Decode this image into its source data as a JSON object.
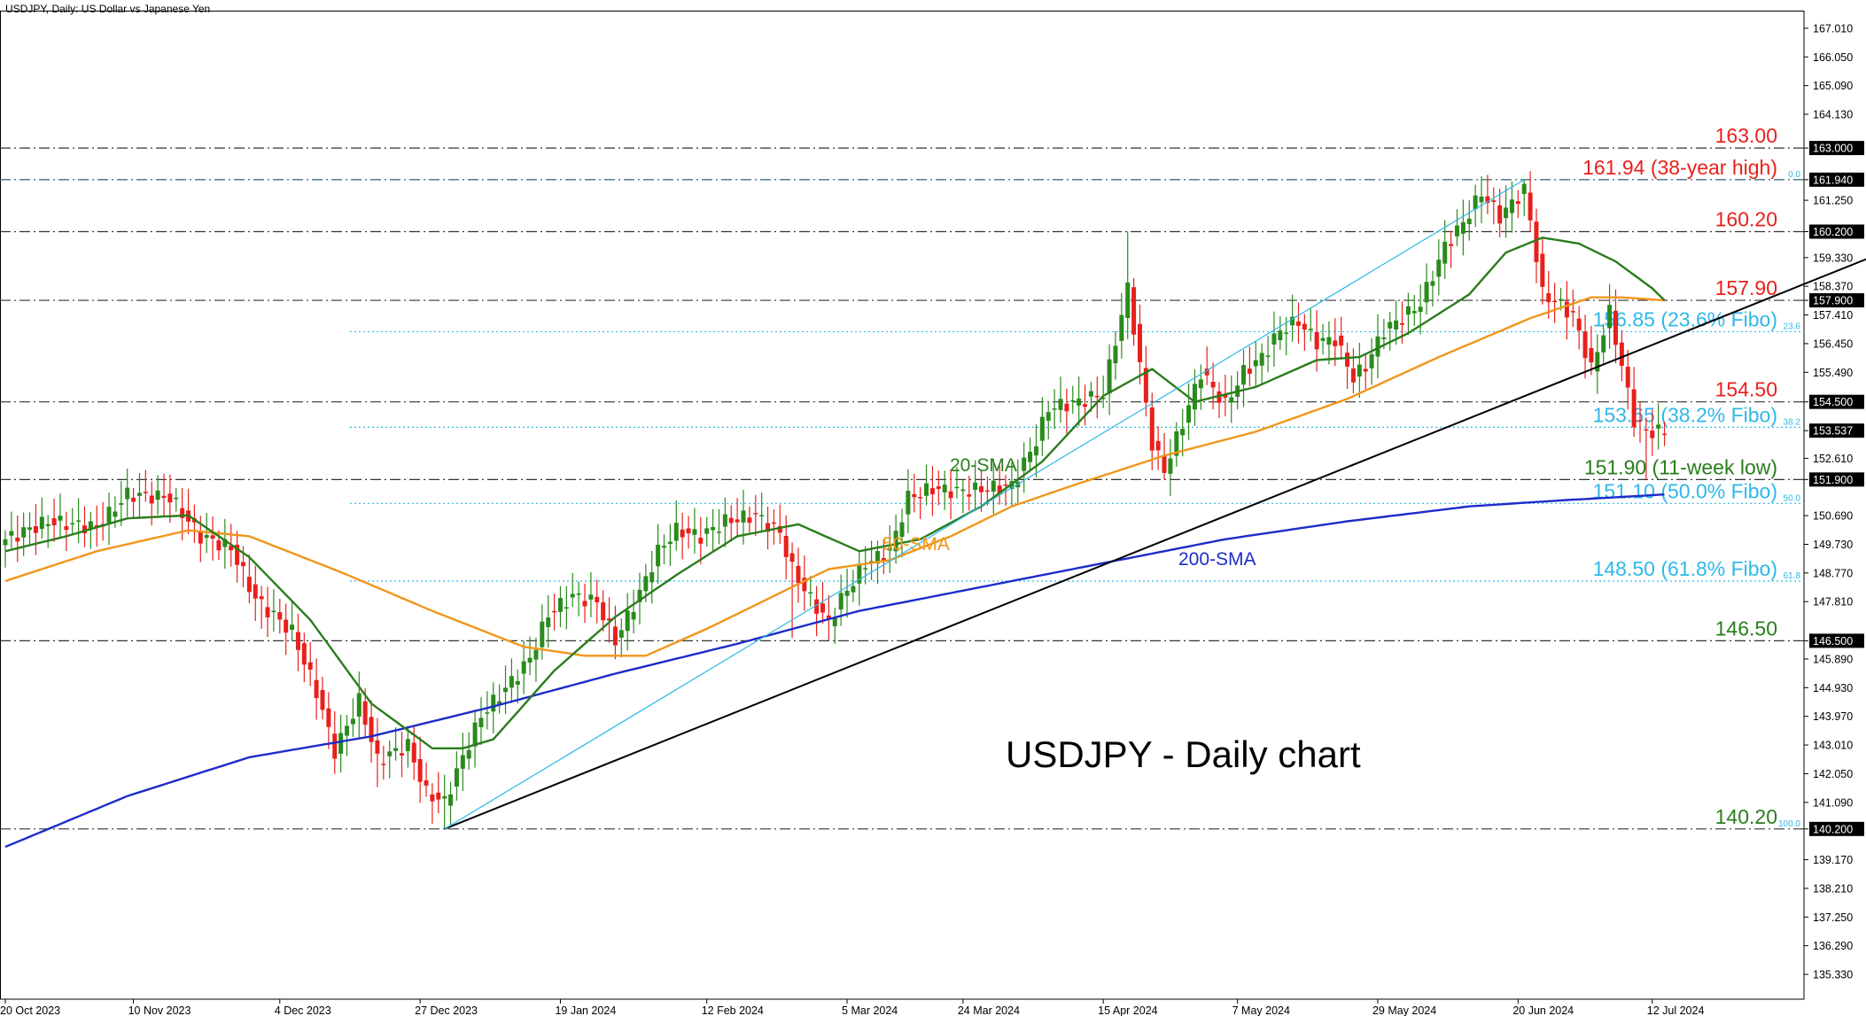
{
  "header": {
    "title": "USDJPY, Daily:  US Dollar vs Japanese Yen"
  },
  "chart_data": {
    "type": "candlestick",
    "symbol": "USDJPY",
    "timeframe": "Daily",
    "big_title": "USDJPY - Daily chart",
    "ylim": [
      134.5,
      167.6
    ],
    "y_ticks": [
      "167.010",
      "166.050",
      "165.090",
      "164.130",
      "163.000",
      "161.940",
      "161.250",
      "160.200",
      "159.330",
      "158.370",
      "157.900",
      "157.410",
      "156.450",
      "155.490",
      "154.500",
      "153.537",
      "152.610",
      "151.900",
      "150.690",
      "149.730",
      "148.770",
      "147.810",
      "146.500",
      "145.890",
      "144.930",
      "143.970",
      "143.010",
      "142.050",
      "141.090",
      "140.200",
      "139.170",
      "138.210",
      "137.250",
      "136.290",
      "135.330"
    ],
    "highlight_ticks": [
      "163.000",
      "161.940",
      "160.200",
      "157.900",
      "154.500",
      "153.537",
      "151.900",
      "146.500",
      "140.200"
    ],
    "x_ticks": [
      "20 Oct 2023",
      "10 Nov 2023",
      "4 Dec 2023",
      "27 Dec 2023",
      "19 Jan 2024",
      "12 Feb 2024",
      "5 Mar 2024",
      "24 Mar 2024",
      "15 Apr 2024",
      "7 May 2024",
      "29 May 2024",
      "20 Jun 2024",
      "12 Jul 2024"
    ],
    "levels": [
      {
        "label": "163.00",
        "value": 163.0,
        "kind": "resistance",
        "color": "#e8201c"
      },
      {
        "label": "161.94 (38-year high)",
        "value": 161.94,
        "kind": "fibo",
        "fibo_tag": "0.0",
        "color": "#e8201c"
      },
      {
        "label": "160.20",
        "value": 160.2,
        "kind": "resistance",
        "color": "#e8201c"
      },
      {
        "label": "157.90",
        "value": 157.9,
        "kind": "resistance",
        "color": "#e8201c"
      },
      {
        "label": "156.85 (23.6% Fibo)",
        "value": 156.85,
        "kind": "fibo",
        "fibo_tag": "23.6",
        "color": "#2eb8e8"
      },
      {
        "label": "154.50",
        "value": 154.5,
        "kind": "resistance",
        "color": "#e8201c"
      },
      {
        "label": "153.65 (38.2% Fibo)",
        "value": 153.65,
        "kind": "fibo",
        "fibo_tag": "38.2",
        "color": "#2eb8e8"
      },
      {
        "label": "151.90 (11-week low)",
        "value": 151.9,
        "kind": "support",
        "color": "#2a7d1c"
      },
      {
        "label": "151.10 (50.0% Fibo)",
        "value": 151.1,
        "kind": "fibo",
        "fibo_tag": "50.0",
        "color": "#2eb8e8"
      },
      {
        "label": "148.50 (61.8% Fibo)",
        "value": 148.5,
        "kind": "fibo",
        "fibo_tag": "61.8",
        "color": "#2eb8e8"
      },
      {
        "label": "146.50",
        "value": 146.5,
        "kind": "support",
        "color": "#2a7d1c"
      },
      {
        "label": "140.20",
        "value": 140.2,
        "kind": "fibo",
        "fibo_tag": "100.0",
        "color": "#2a7d1c"
      }
    ],
    "indicator_labels": [
      {
        "name": "20-SMA",
        "color": "#2a7d1c"
      },
      {
        "name": "50-SMA",
        "color": "#f0961a"
      },
      {
        "name": "200-SMA",
        "color": "#1c2cc8"
      }
    ],
    "colors": {
      "bull": "#2a8a1c",
      "bear": "#e8201c",
      "sma20": "#2a7d1c",
      "sma50": "#f0961a",
      "sma200": "#1c2cc8",
      "fibo": "#2eb8e8",
      "trend": "#000000"
    },
    "close_key": [
      [
        0,
        149.9
      ],
      [
        7,
        150.5
      ],
      [
        15,
        150.3
      ],
      [
        20,
        151.4
      ],
      [
        27,
        151.3
      ],
      [
        32,
        150.0
      ],
      [
        37,
        149.6
      ],
      [
        41,
        147.9
      ],
      [
        47,
        146.8
      ],
      [
        51,
        144.8
      ],
      [
        54,
        142.8
      ],
      [
        58,
        144.5
      ],
      [
        61,
        142.5
      ],
      [
        66,
        143.0
      ],
      [
        69,
        141.4
      ],
      [
        72,
        141.1
      ],
      [
        75,
        142.6
      ],
      [
        78,
        144.0
      ],
      [
        82,
        144.9
      ],
      [
        86,
        145.9
      ],
      [
        89,
        147.4
      ],
      [
        93,
        148.0
      ],
      [
        97,
        147.8
      ],
      [
        100,
        146.5
      ],
      [
        104,
        148.1
      ],
      [
        107,
        149.5
      ],
      [
        110,
        150.2
      ],
      [
        114,
        150.0
      ],
      [
        118,
        150.5
      ],
      [
        123,
        150.7
      ],
      [
        127,
        150.1
      ],
      [
        129,
        148.9
      ],
      [
        132,
        147.9
      ],
      [
        135,
        147.1
      ],
      [
        137,
        147.9
      ],
      [
        141,
        149.1
      ],
      [
        145,
        149.5
      ],
      [
        148,
        151.3
      ],
      [
        152,
        151.6
      ],
      [
        156,
        151.5
      ],
      [
        161,
        151.6
      ],
      [
        165,
        151.7
      ],
      [
        169,
        153.2
      ],
      [
        171,
        154.3
      ],
      [
        176,
        154.5
      ],
      [
        180,
        154.8
      ],
      [
        184,
        158.3
      ],
      [
        186,
        155.7
      ],
      [
        188,
        153.1
      ],
      [
        190,
        152.2
      ],
      [
        193,
        153.8
      ],
      [
        196,
        155.5
      ],
      [
        200,
        154.4
      ],
      [
        203,
        155.5
      ],
      [
        206,
        156.0
      ],
      [
        209,
        156.9
      ],
      [
        212,
        157.2
      ],
      [
        215,
        156.5
      ],
      [
        218,
        156.6
      ],
      [
        221,
        155.3
      ],
      [
        223,
        155.7
      ],
      [
        226,
        156.9
      ],
      [
        229,
        157.3
      ],
      [
        232,
        157.8
      ],
      [
        236,
        159.7
      ],
      [
        239,
        160.5
      ],
      [
        242,
        161.5
      ],
      [
        245,
        160.7
      ],
      [
        249,
        161.6
      ],
      [
        250,
        160.6
      ],
      [
        252,
        158.1
      ],
      [
        254,
        157.9
      ],
      [
        257,
        157.4
      ],
      [
        260,
        155.6
      ],
      [
        263,
        157.5
      ],
      [
        265,
        155.7
      ],
      [
        267,
        153.9
      ],
      [
        269,
        153.5
      ],
      [
        271,
        153.5
      ],
      [
        272,
        153.5
      ]
    ],
    "extremes": [
      {
        "i": 42,
        "low": 146.9
      },
      {
        "i": 61,
        "low": 141.6
      },
      {
        "i": 72,
        "low": 140.2
      },
      {
        "i": 129,
        "low": 146.6
      },
      {
        "i": 184,
        "high": 160.2
      },
      {
        "i": 190,
        "low": 151.9
      },
      {
        "i": 249,
        "high": 161.94
      },
      {
        "i": 269,
        "low": 151.9
      }
    ],
    "sma20_key": [
      [
        0,
        149.5
      ],
      [
        10,
        150.0
      ],
      [
        20,
        150.6
      ],
      [
        30,
        150.7
      ],
      [
        40,
        149.3
      ],
      [
        50,
        147.2
      ],
      [
        60,
        144.4
      ],
      [
        70,
        142.9
      ],
      [
        75,
        142.9
      ],
      [
        80,
        143.2
      ],
      [
        90,
        145.5
      ],
      [
        100,
        147.3
      ],
      [
        110,
        148.7
      ],
      [
        120,
        150.0
      ],
      [
        130,
        150.4
      ],
      [
        140,
        149.5
      ],
      [
        150,
        149.9
      ],
      [
        160,
        151.0
      ],
      [
        170,
        152.5
      ],
      [
        180,
        154.7
      ],
      [
        188,
        155.6
      ],
      [
        195,
        154.5
      ],
      [
        205,
        155.0
      ],
      [
        215,
        155.9
      ],
      [
        222,
        156.0
      ],
      [
        230,
        156.8
      ],
      [
        240,
        158.1
      ],
      [
        246,
        159.5
      ],
      [
        252,
        160.0
      ],
      [
        258,
        159.8
      ],
      [
        264,
        159.2
      ],
      [
        270,
        158.3
      ],
      [
        272,
        157.9
      ]
    ],
    "sma50_key": [
      [
        0,
        148.5
      ],
      [
        15,
        149.5
      ],
      [
        30,
        150.2
      ],
      [
        40,
        150.0
      ],
      [
        55,
        148.8
      ],
      [
        70,
        147.5
      ],
      [
        85,
        146.3
      ],
      [
        95,
        146.0
      ],
      [
        105,
        146.0
      ],
      [
        115,
        146.9
      ],
      [
        125,
        147.9
      ],
      [
        135,
        148.9
      ],
      [
        145,
        149.2
      ],
      [
        155,
        150.0
      ],
      [
        165,
        151.0
      ],
      [
        175,
        151.7
      ],
      [
        190,
        152.7
      ],
      [
        205,
        153.5
      ],
      [
        220,
        154.6
      ],
      [
        235,
        156.0
      ],
      [
        250,
        157.3
      ],
      [
        260,
        158.0
      ],
      [
        265,
        158.0
      ],
      [
        272,
        157.9
      ]
    ],
    "sma200_key": [
      [
        0,
        139.6
      ],
      [
        20,
        141.3
      ],
      [
        40,
        142.6
      ],
      [
        60,
        143.3
      ],
      [
        80,
        144.3
      ],
      [
        100,
        145.4
      ],
      [
        120,
        146.4
      ],
      [
        140,
        147.5
      ],
      [
        160,
        148.3
      ],
      [
        180,
        149.1
      ],
      [
        200,
        149.9
      ],
      [
        220,
        150.5
      ],
      [
        240,
        151.0
      ],
      [
        255,
        151.2
      ],
      [
        272,
        151.4
      ]
    ],
    "trendline": {
      "from": [
        72,
        140.2
      ],
      "to": [
        320,
        160.5
      ]
    },
    "fibo_line": {
      "from": [
        72,
        140.2
      ],
      "to": [
        249,
        161.94
      ]
    }
  }
}
